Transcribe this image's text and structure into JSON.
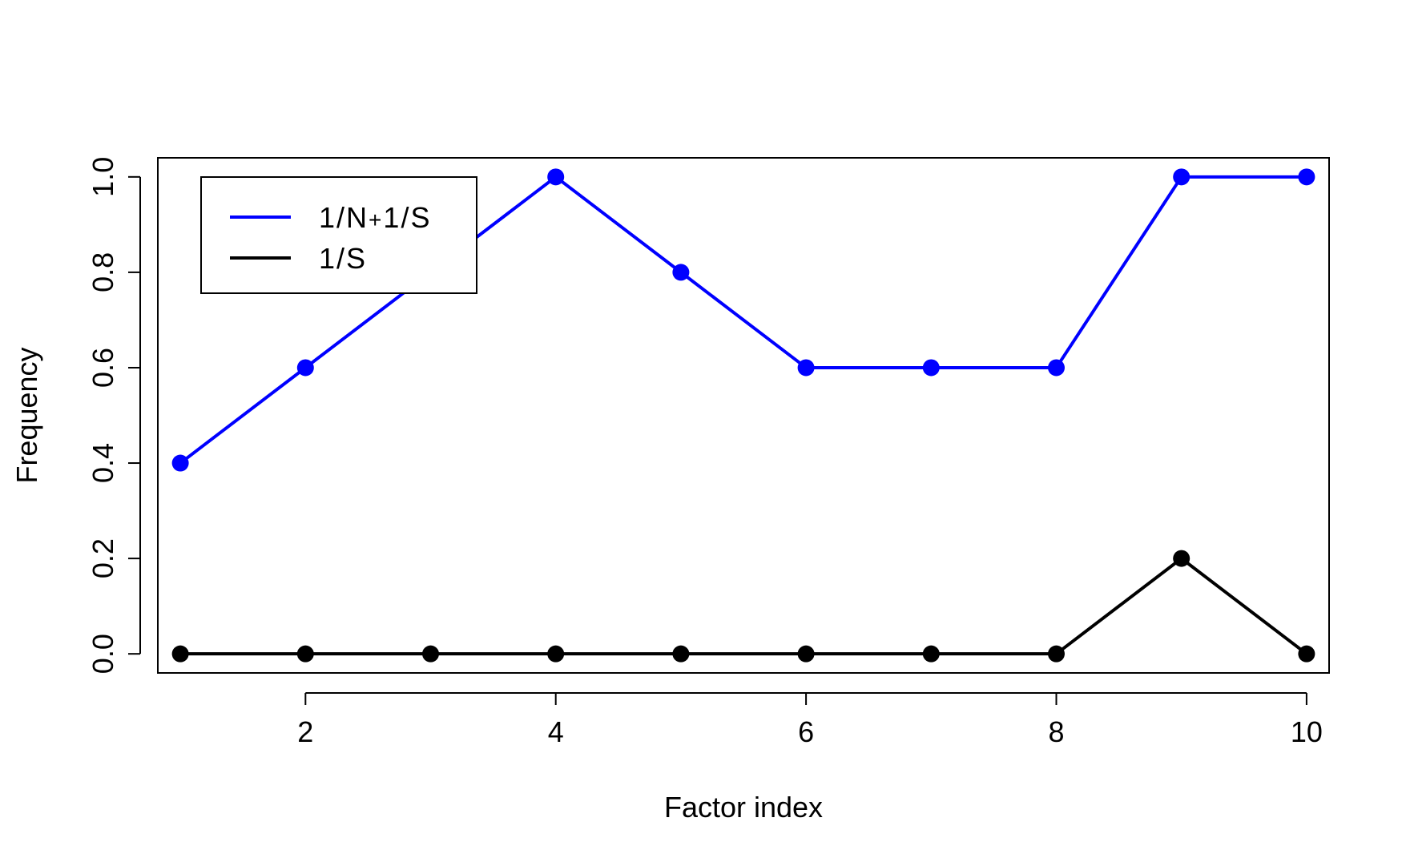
{
  "chart_data": {
    "type": "line",
    "xlabel": "Factor index",
    "ylabel": "Frequency",
    "xlim": [
      0.82,
      10.18
    ],
    "ylim": [
      -0.04,
      1.04
    ],
    "x_ticks": [
      2,
      4,
      6,
      8,
      10
    ],
    "y_ticks": [
      0.0,
      0.2,
      0.4,
      0.6,
      0.8,
      1.0
    ],
    "x_tick_labels": [
      "2",
      "4",
      "6",
      "8",
      "10"
    ],
    "y_tick_labels": [
      "0.0",
      "0.2",
      "0.4",
      "0.6",
      "0.8",
      "1.0"
    ],
    "x": [
      1,
      2,
      3,
      4,
      5,
      6,
      7,
      8,
      9,
      10
    ],
    "series": [
      {
        "name": "1/N + 1/S",
        "color": "#0000ff",
        "values": [
          0.4,
          0.6,
          0.8,
          1.0,
          0.8,
          0.6,
          0.6,
          0.6,
          1.0,
          1.0
        ]
      },
      {
        "name": "1/S",
        "color": "#000000",
        "values": [
          0.0,
          0.0,
          0.0,
          0.0,
          0.0,
          0.0,
          0.0,
          0.0,
          0.2,
          0.0
        ]
      }
    ],
    "legend": {
      "position": "top-left",
      "entries": [
        {
          "label_parts": [
            "1",
            "/",
            "N",
            "+",
            "1",
            "/",
            "S"
          ],
          "color": "#0000ff"
        },
        {
          "label_parts": [
            "1",
            "/",
            "S"
          ],
          "color": "#000000"
        }
      ]
    },
    "grid": false
  }
}
